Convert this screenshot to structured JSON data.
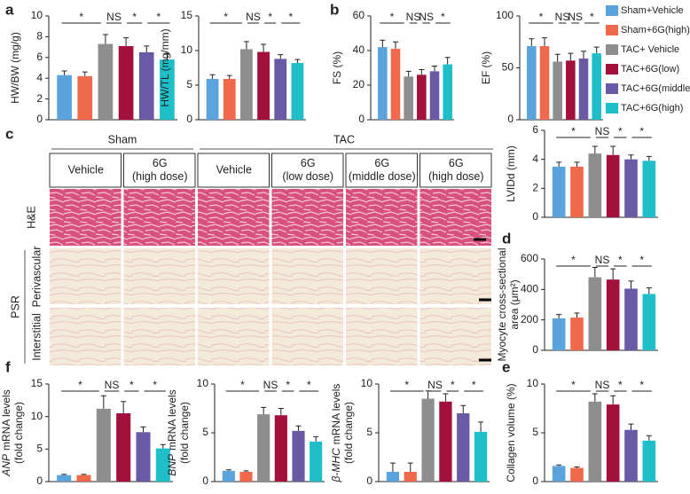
{
  "panel_labels": [
    "a",
    "b",
    "c",
    "d",
    "e",
    "f"
  ],
  "legend": [
    {
      "name": "Sham+Vehicle",
      "color": "#5ba3dc"
    },
    {
      "name": "Sham+6G(high)",
      "color": "#f0694b"
    },
    {
      "name": "TAC+ Vehicle",
      "color": "#8e8e8e"
    },
    {
      "name": "TAC+6G(low)",
      "color": "#a3103c"
    },
    {
      "name": "TAC+6G(middle)",
      "color": "#6a5aa6"
    },
    {
      "name": "TAC+6G(high)",
      "color": "#1ebfc8"
    }
  ],
  "histology": {
    "groups": [
      "Sham",
      "TAC"
    ],
    "columns": [
      [
        "Vehicle"
      ],
      [
        "6G",
        "(high dose)"
      ],
      [
        "Vehicle"
      ],
      [
        "6G",
        "(low dose)"
      ],
      [
        "6G",
        "(middle dose)"
      ],
      [
        "6G",
        "(high dose)"
      ]
    ],
    "rows": [
      "H&E",
      "PSR",
      "Perivascular",
      "Interstitial"
    ]
  },
  "chart_data": [
    {
      "type": "bar",
      "ylabel": [
        "HW/BW (mg/g)"
      ],
      "values": [
        4.3,
        4.2,
        7.3,
        7.1,
        6.5,
        5.8
      ],
      "errors": [
        0.4,
        0.4,
        0.9,
        0.8,
        0.6,
        0.6
      ],
      "ylim": [
        0,
        10
      ],
      "yticks": [
        0,
        2,
        4,
        6,
        8,
        10
      ],
      "significance": [
        "*",
        "NS",
        "*",
        "*"
      ]
    },
    {
      "type": "bar",
      "ylabel": [
        "HW/TL (mg/mm)"
      ],
      "values": [
        5.9,
        5.9,
        10.2,
        9.8,
        8.8,
        8.2
      ],
      "errors": [
        0.6,
        0.5,
        1.1,
        1.1,
        0.6,
        0.5
      ],
      "ylim": [
        0,
        15
      ],
      "yticks": [
        0,
        5,
        10,
        15
      ],
      "significance": [
        "*",
        "NS",
        "*",
        "*"
      ]
    },
    {
      "type": "bar",
      "ylabel": [
        "FS (%)"
      ],
      "values": [
        42,
        41,
        25,
        26,
        28,
        32
      ],
      "errors": [
        4,
        4,
        3,
        3,
        3,
        4
      ],
      "ylim": [
        0,
        60
      ],
      "yticks": [
        0,
        20,
        40,
        60
      ],
      "significance": [
        "*",
        "NS",
        "NS",
        "*"
      ]
    },
    {
      "type": "bar",
      "ylabel": [
        "EF (%)"
      ],
      "values": [
        71,
        71,
        56,
        57,
        59,
        64
      ],
      "errors": [
        7,
        8,
        7,
        7,
        7,
        6
      ],
      "ylim": [
        0,
        100
      ],
      "yticks": [
        0,
        50,
        100
      ],
      "significance": [
        "*",
        "NS",
        "NS",
        "*"
      ]
    },
    {
      "type": "bar",
      "ylabel": [
        "LVIDd (mm)"
      ],
      "values": [
        3.5,
        3.5,
        4.4,
        4.3,
        4.0,
        3.9
      ],
      "errors": [
        0.3,
        0.3,
        0.5,
        0.6,
        0.3,
        0.3
      ],
      "ylim": [
        0,
        6
      ],
      "yticks": [
        0,
        2,
        4,
        6
      ],
      "significance": [
        "*",
        "NS",
        "*",
        "*"
      ]
    },
    {
      "type": "bar",
      "ylabel": [
        "Myocyte cross-sectional",
        "area (μm²)"
      ],
      "values": [
        210,
        215,
        480,
        465,
        405,
        370
      ],
      "errors": [
        25,
        30,
        65,
        70,
        50,
        40
      ],
      "ylim": [
        0,
        600
      ],
      "yticks": [
        0,
        200,
        400,
        600
      ],
      "significance": [
        "*",
        "NS",
        "*",
        "*"
      ]
    },
    {
      "type": "bar",
      "ylabel_gene": "ANP",
      "ylabel": [
        "mRNA levels",
        "(fold change)"
      ],
      "values": [
        1.0,
        1.0,
        11.2,
        10.5,
        7.6,
        5.1
      ],
      "errors": [
        0.1,
        0.1,
        2.0,
        1.8,
        0.8,
        0.6
      ],
      "ylim": [
        0,
        15
      ],
      "yticks": [
        0,
        5,
        10,
        15
      ],
      "significance": [
        "*",
        "NS",
        "*",
        "*"
      ]
    },
    {
      "type": "bar",
      "ylabel_gene": "BNP",
      "ylabel": [
        "mRNA levels",
        "(fold change)"
      ],
      "values": [
        1.1,
        1.0,
        6.9,
        6.8,
        5.2,
        4.1
      ],
      "errors": [
        0.1,
        0.1,
        0.7,
        0.7,
        0.5,
        0.5
      ],
      "ylim": [
        0,
        10
      ],
      "yticks": [
        0,
        5,
        10
      ],
      "significance": [
        "*",
        "NS",
        "*",
        "*"
      ]
    },
    {
      "type": "bar",
      "ylabel_gene": "β-MHC",
      "ylabel": [
        "mRNA levels",
        "(fold change)"
      ],
      "values": [
        1.0,
        1.0,
        8.5,
        8.2,
        7.0,
        5.1
      ],
      "errors": [
        0.9,
        0.9,
        0.8,
        0.8,
        0.8,
        1.0
      ],
      "ylim": [
        0,
        10
      ],
      "yticks": [
        0,
        5,
        10
      ],
      "significance": [
        "*",
        "NS",
        "*",
        "*"
      ]
    },
    {
      "type": "bar",
      "ylabel": [
        "Collagen volume (%)"
      ],
      "values": [
        1.6,
        1.4,
        8.2,
        7.9,
        5.3,
        4.2
      ],
      "errors": [
        0.1,
        0.1,
        0.8,
        0.9,
        0.6,
        0.5
      ],
      "ylim": [
        0,
        10
      ],
      "yticks": [
        0,
        5,
        10
      ],
      "significance": [
        "*",
        "NS",
        "*",
        "*"
      ]
    }
  ]
}
